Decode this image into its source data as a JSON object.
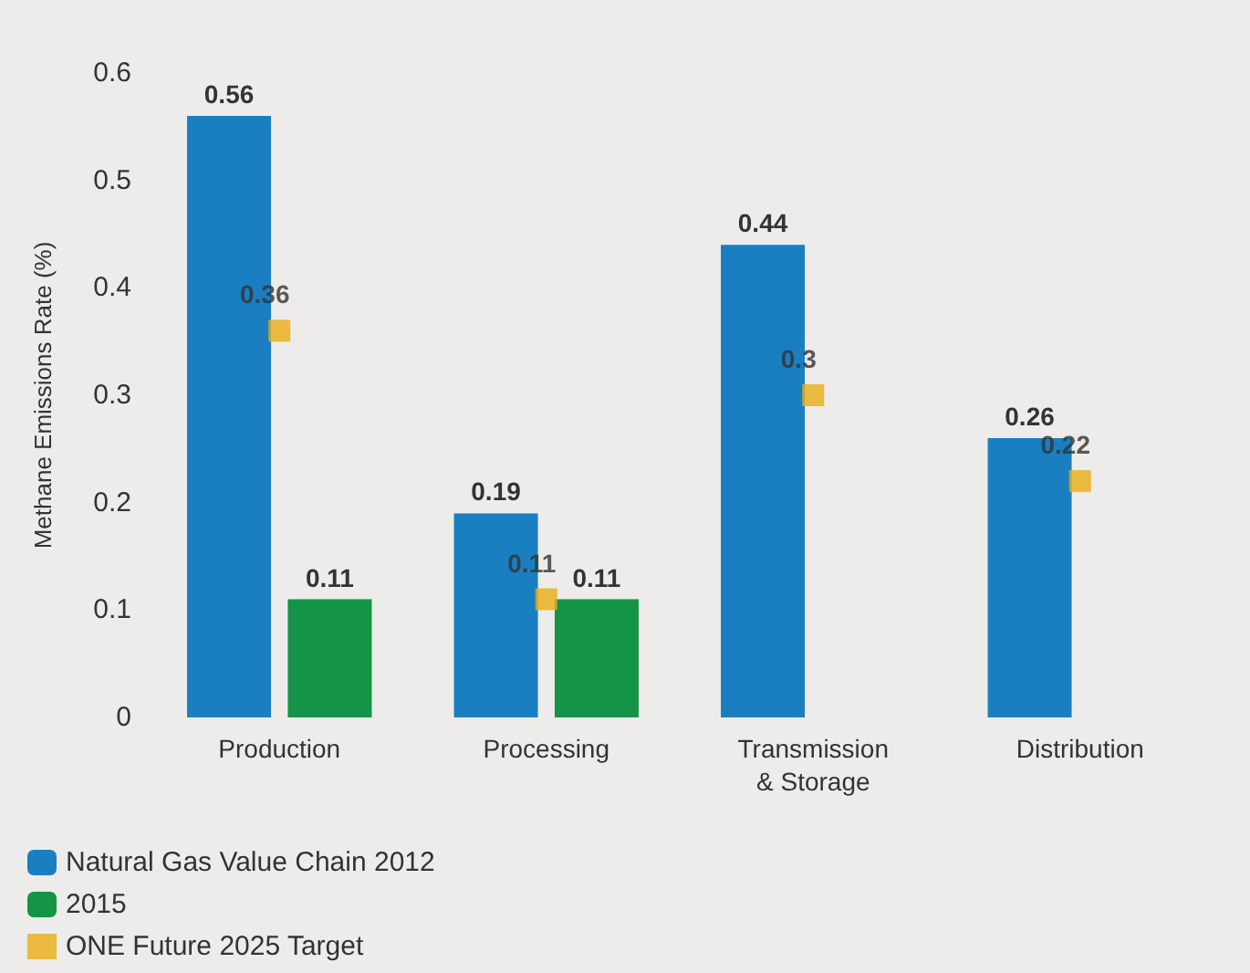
{
  "chart_data": {
    "type": "bar",
    "ylabel": "Methane Emissions Rate (%)",
    "categories": [
      "Production",
      "Processing",
      "Transmission\n& Storage",
      "Distribution"
    ],
    "series": [
      {
        "name": "Natural Gas Value Chain 2012",
        "color": "#1a7fc1",
        "values": [
          0.56,
          0.19,
          0.44,
          0.26
        ]
      },
      {
        "name": "2015",
        "color": "#139447",
        "values": [
          0.11,
          0.11,
          null,
          null
        ]
      },
      {
        "name": "ONE Future 2025 Target",
        "type": "scatter",
        "marker": "square",
        "color": "#e8ae17",
        "values": [
          0.36,
          0.11,
          0.3,
          0.22
        ]
      }
    ],
    "ylim": [
      0,
      0.6
    ],
    "yticks": [
      0,
      0.1,
      0.2,
      0.3,
      0.4,
      0.5,
      0.6
    ],
    "grid": false,
    "legend": "bottom",
    "data_labels": true
  }
}
